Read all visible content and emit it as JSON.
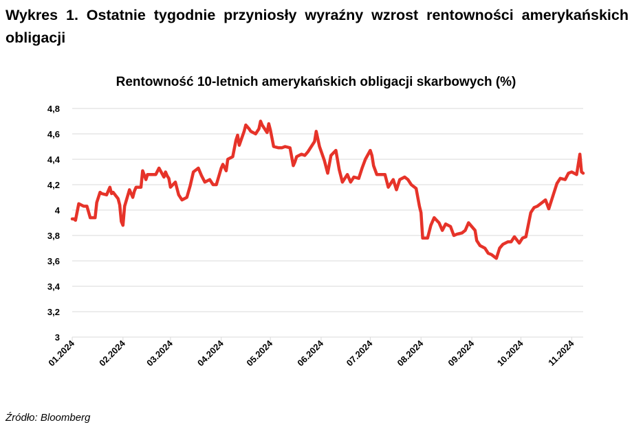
{
  "figure_title": "Wykres 1. Ostatnie tygodnie przyniosły wyraźny wzrost rentowności amerykańskich obligacji",
  "source": "Źródło: Bloomberg",
  "chart_data": {
    "type": "line",
    "title": "Rentowność 10-letnich amerykańskich obligacji skarbowych (%)",
    "xlabel": "",
    "ylabel": "",
    "ylim": [
      3,
      4.8
    ],
    "yticks": [
      3,
      3.2,
      3.4,
      3.6,
      3.8,
      4,
      4.2,
      4.4,
      4.6,
      4.8
    ],
    "ytick_labels": [
      "3",
      "3,2",
      "3,4",
      "3,6",
      "3,8",
      "4",
      "4,2",
      "4,4",
      "4,6",
      "4,8"
    ],
    "xticks": [
      "2024-01-01",
      "2024-02-01",
      "2024-03-01",
      "2024-04-01",
      "2024-05-01",
      "2024-06-01",
      "2024-07-01",
      "2024-08-01",
      "2024-09-01",
      "2024-10-01",
      "2024-11-01"
    ],
    "xtick_labels": [
      "01.2024",
      "02.2024",
      "03.2024",
      "04.2024",
      "05.2024",
      "06.2024",
      "07.2024",
      "08.2024",
      "09.2024",
      "10.2024",
      "11.2024"
    ],
    "xlim": [
      "2024-01-01",
      "2024-11-08"
    ],
    "grid": true,
    "line_color": "#e63329",
    "series": [
      {
        "x": [
          "2024-01-01",
          "2024-01-02",
          "2024-01-03",
          "2024-01-05",
          "2024-01-08",
          "2024-01-10",
          "2024-01-12",
          "2024-01-15",
          "2024-01-16",
          "2024-01-18",
          "2024-01-19",
          "2024-01-22",
          "2024-01-24",
          "2024-01-25",
          "2024-01-26",
          "2024-01-29",
          "2024-01-30",
          "2024-01-31",
          "2024-02-01",
          "2024-02-02",
          "2024-02-05",
          "2024-02-07",
          "2024-02-08",
          "2024-02-09",
          "2024-02-12",
          "2024-02-13",
          "2024-02-15",
          "2024-02-16",
          "2024-02-19",
          "2024-02-21",
          "2024-02-23",
          "2024-02-26",
          "2024-02-27",
          "2024-02-28",
          "2024-02-29",
          "2024-03-01",
          "2024-03-04",
          "2024-03-06",
          "2024-03-08",
          "2024-03-11",
          "2024-03-13",
          "2024-03-15",
          "2024-03-18",
          "2024-03-20",
          "2024-03-22",
          "2024-03-25",
          "2024-03-27",
          "2024-03-29",
          "2024-04-01",
          "2024-04-02",
          "2024-04-04",
          "2024-04-05",
          "2024-04-08",
          "2024-04-10",
          "2024-04-11",
          "2024-04-12",
          "2024-04-15",
          "2024-04-16",
          "2024-04-18",
          "2024-04-19",
          "2024-04-22",
          "2024-04-24",
          "2024-04-25",
          "2024-04-26",
          "2024-04-29",
          "2024-04-30",
          "2024-05-01",
          "2024-05-03",
          "2024-05-06",
          "2024-05-08",
          "2024-05-10",
          "2024-05-13",
          "2024-05-15",
          "2024-05-16",
          "2024-05-17",
          "2024-05-20",
          "2024-05-22",
          "2024-05-24",
          "2024-05-28",
          "2024-05-29",
          "2024-05-31",
          "2024-06-03",
          "2024-06-05",
          "2024-06-07",
          "2024-06-10",
          "2024-06-12",
          "2024-06-14",
          "2024-06-17",
          "2024-06-19",
          "2024-06-21",
          "2024-06-24",
          "2024-06-26",
          "2024-06-28",
          "2024-07-01",
          "2024-07-02",
          "2024-07-03",
          "2024-07-05",
          "2024-07-08",
          "2024-07-10",
          "2024-07-12",
          "2024-07-15",
          "2024-07-17",
          "2024-07-19",
          "2024-07-22",
          "2024-07-24",
          "2024-07-26",
          "2024-07-29",
          "2024-07-31",
          "2024-08-01",
          "2024-08-02",
          "2024-08-05",
          "2024-08-07",
          "2024-08-09",
          "2024-08-12",
          "2024-08-14",
          "2024-08-16",
          "2024-08-19",
          "2024-08-21",
          "2024-08-23",
          "2024-08-26",
          "2024-08-28",
          "2024-08-30",
          "2024-09-03",
          "2024-09-04",
          "2024-09-06",
          "2024-09-09",
          "2024-09-11",
          "2024-09-13",
          "2024-09-16",
          "2024-09-18",
          "2024-09-20",
          "2024-09-23",
          "2024-09-25",
          "2024-09-27",
          "2024-09-30",
          "2024-10-02",
          "2024-10-04",
          "2024-10-07",
          "2024-10-09",
          "2024-10-11",
          "2024-10-14",
          "2024-10-16",
          "2024-10-18",
          "2024-10-21",
          "2024-10-23",
          "2024-10-25",
          "2024-10-28",
          "2024-10-30",
          "2024-11-01",
          "2024-11-04",
          "2024-11-06",
          "2024-11-07",
          "2024-11-08"
        ],
        "values": [
          3.93,
          3.93,
          3.92,
          4.05,
          4.03,
          4.03,
          3.94,
          3.94,
          4.06,
          4.14,
          4.13,
          4.12,
          4.18,
          4.13,
          4.14,
          4.09,
          4.04,
          3.91,
          3.88,
          4.03,
          4.16,
          4.1,
          4.15,
          4.18,
          4.18,
          4.31,
          4.24,
          4.28,
          4.28,
          4.28,
          4.33,
          4.26,
          4.3,
          4.27,
          4.25,
          4.18,
          4.22,
          4.12,
          4.08,
          4.1,
          4.19,
          4.3,
          4.33,
          4.27,
          4.22,
          4.24,
          4.2,
          4.2,
          4.33,
          4.36,
          4.31,
          4.4,
          4.42,
          4.55,
          4.59,
          4.51,
          4.62,
          4.67,
          4.64,
          4.62,
          4.6,
          4.64,
          4.7,
          4.67,
          4.61,
          4.68,
          4.63,
          4.5,
          4.49,
          4.49,
          4.5,
          4.49,
          4.35,
          4.38,
          4.42,
          4.44,
          4.43,
          4.46,
          4.54,
          4.62,
          4.5,
          4.39,
          4.29,
          4.43,
          4.47,
          4.32,
          4.22,
          4.28,
          4.22,
          4.26,
          4.25,
          4.33,
          4.4,
          4.47,
          4.43,
          4.35,
          4.28,
          4.28,
          4.28,
          4.18,
          4.24,
          4.16,
          4.24,
          4.26,
          4.24,
          4.2,
          4.17,
          4.03,
          3.98,
          3.78,
          3.78,
          3.88,
          3.94,
          3.9,
          3.84,
          3.89,
          3.87,
          3.8,
          3.81,
          3.82,
          3.84,
          3.9,
          3.84,
          3.76,
          3.72,
          3.7,
          3.66,
          3.65,
          3.62,
          3.7,
          3.73,
          3.75,
          3.75,
          3.79,
          3.74,
          3.78,
          3.79,
          3.98,
          4.02,
          4.03,
          4.06,
          4.08,
          4.01,
          4.13,
          4.21,
          4.25,
          4.24,
          4.29,
          4.3,
          4.28,
          4.44,
          4.3,
          4.29
        ]
      }
    ]
  }
}
